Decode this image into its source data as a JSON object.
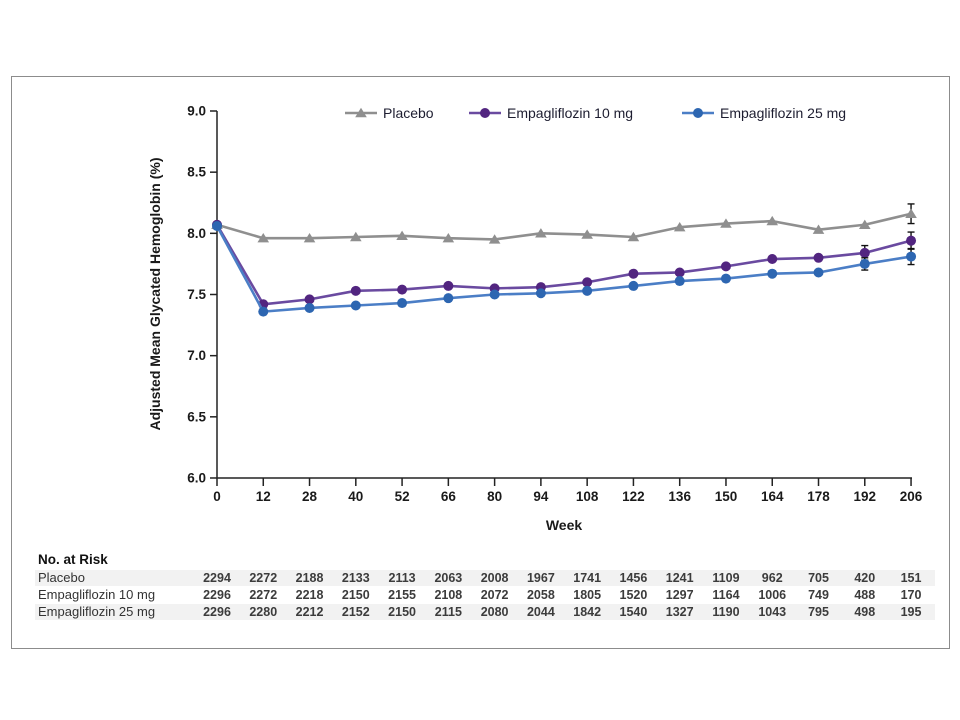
{
  "page": {
    "background": "#ffffff",
    "frame_border_color": "#8c8c8c",
    "row_shade_color": "#f2f2f2"
  },
  "chart_data": {
    "type": "line",
    "title": "",
    "xlabel": "Week",
    "ylabel": "Adjusted Mean Glycated Hemoglobin (%)",
    "x": [
      0,
      12,
      28,
      40,
      52,
      66,
      80,
      94,
      108,
      122,
      136,
      150,
      164,
      178,
      192,
      206
    ],
    "x_tick_labels": [
      "0",
      "12",
      "28",
      "40",
      "52",
      "66",
      "80",
      "94",
      "108",
      "122",
      "136",
      "150",
      "164",
      "178",
      "192",
      "206"
    ],
    "y_tick_labels": [
      "9.0",
      "8.5",
      "8.0",
      "7.5",
      "7.0",
      "6.5",
      "6.0"
    ],
    "ylim": [
      6.0,
      9.0
    ],
    "grid": false,
    "legend_position": "top",
    "series": [
      {
        "name": "Placebo",
        "marker": "triangle",
        "line_color": "#8f8f8f",
        "marker_color": "#8f8f8f",
        "values": [
          8.07,
          7.96,
          7.96,
          7.97,
          7.98,
          7.96,
          7.95,
          8.0,
          7.99,
          7.97,
          8.05,
          8.08,
          8.1,
          8.03,
          8.07,
          8.16
        ],
        "error_bars": [
          {
            "week": 206,
            "plus_minus": 0.08
          }
        ]
      },
      {
        "name": "Empagliflozin 10 mg",
        "marker": "circle",
        "line_color": "#6a4aa0",
        "marker_color": "#522580",
        "values": [
          8.07,
          7.42,
          7.46,
          7.53,
          7.54,
          7.57,
          7.55,
          7.56,
          7.6,
          7.67,
          7.68,
          7.73,
          7.79,
          7.8,
          7.84,
          7.94
        ],
        "error_bars": [
          {
            "week": 192,
            "plus_minus": 0.06
          },
          {
            "week": 206,
            "plus_minus": 0.07
          }
        ]
      },
      {
        "name": "Empagliflozin 25 mg",
        "marker": "circle",
        "line_color": "#4b7ec6",
        "marker_color": "#2d66b1",
        "values": [
          8.06,
          7.36,
          7.39,
          7.41,
          7.43,
          7.47,
          7.5,
          7.51,
          7.53,
          7.57,
          7.61,
          7.63,
          7.67,
          7.68,
          7.75,
          7.81
        ],
        "error_bars": [
          {
            "week": 192,
            "plus_minus": 0.05
          },
          {
            "week": 206,
            "plus_minus": 0.065
          }
        ]
      }
    ]
  },
  "risk_table": {
    "title": "No. at Risk",
    "rows": [
      {
        "label": "Placebo",
        "values": [
          2294,
          2272,
          2188,
          2133,
          2113,
          2063,
          2008,
          1967,
          1741,
          1456,
          1241,
          1109,
          962,
          705,
          420,
          151
        ]
      },
      {
        "label": "Empagliflozin 10 mg",
        "values": [
          2296,
          2272,
          2218,
          2150,
          2155,
          2108,
          2072,
          2058,
          1805,
          1520,
          1297,
          1164,
          1006,
          749,
          488,
          170
        ]
      },
      {
        "label": "Empagliflozin 25 mg",
        "values": [
          2296,
          2280,
          2212,
          2152,
          2150,
          2115,
          2080,
          2044,
          1842,
          1540,
          1327,
          1190,
          1043,
          795,
          498,
          195
        ]
      }
    ]
  }
}
